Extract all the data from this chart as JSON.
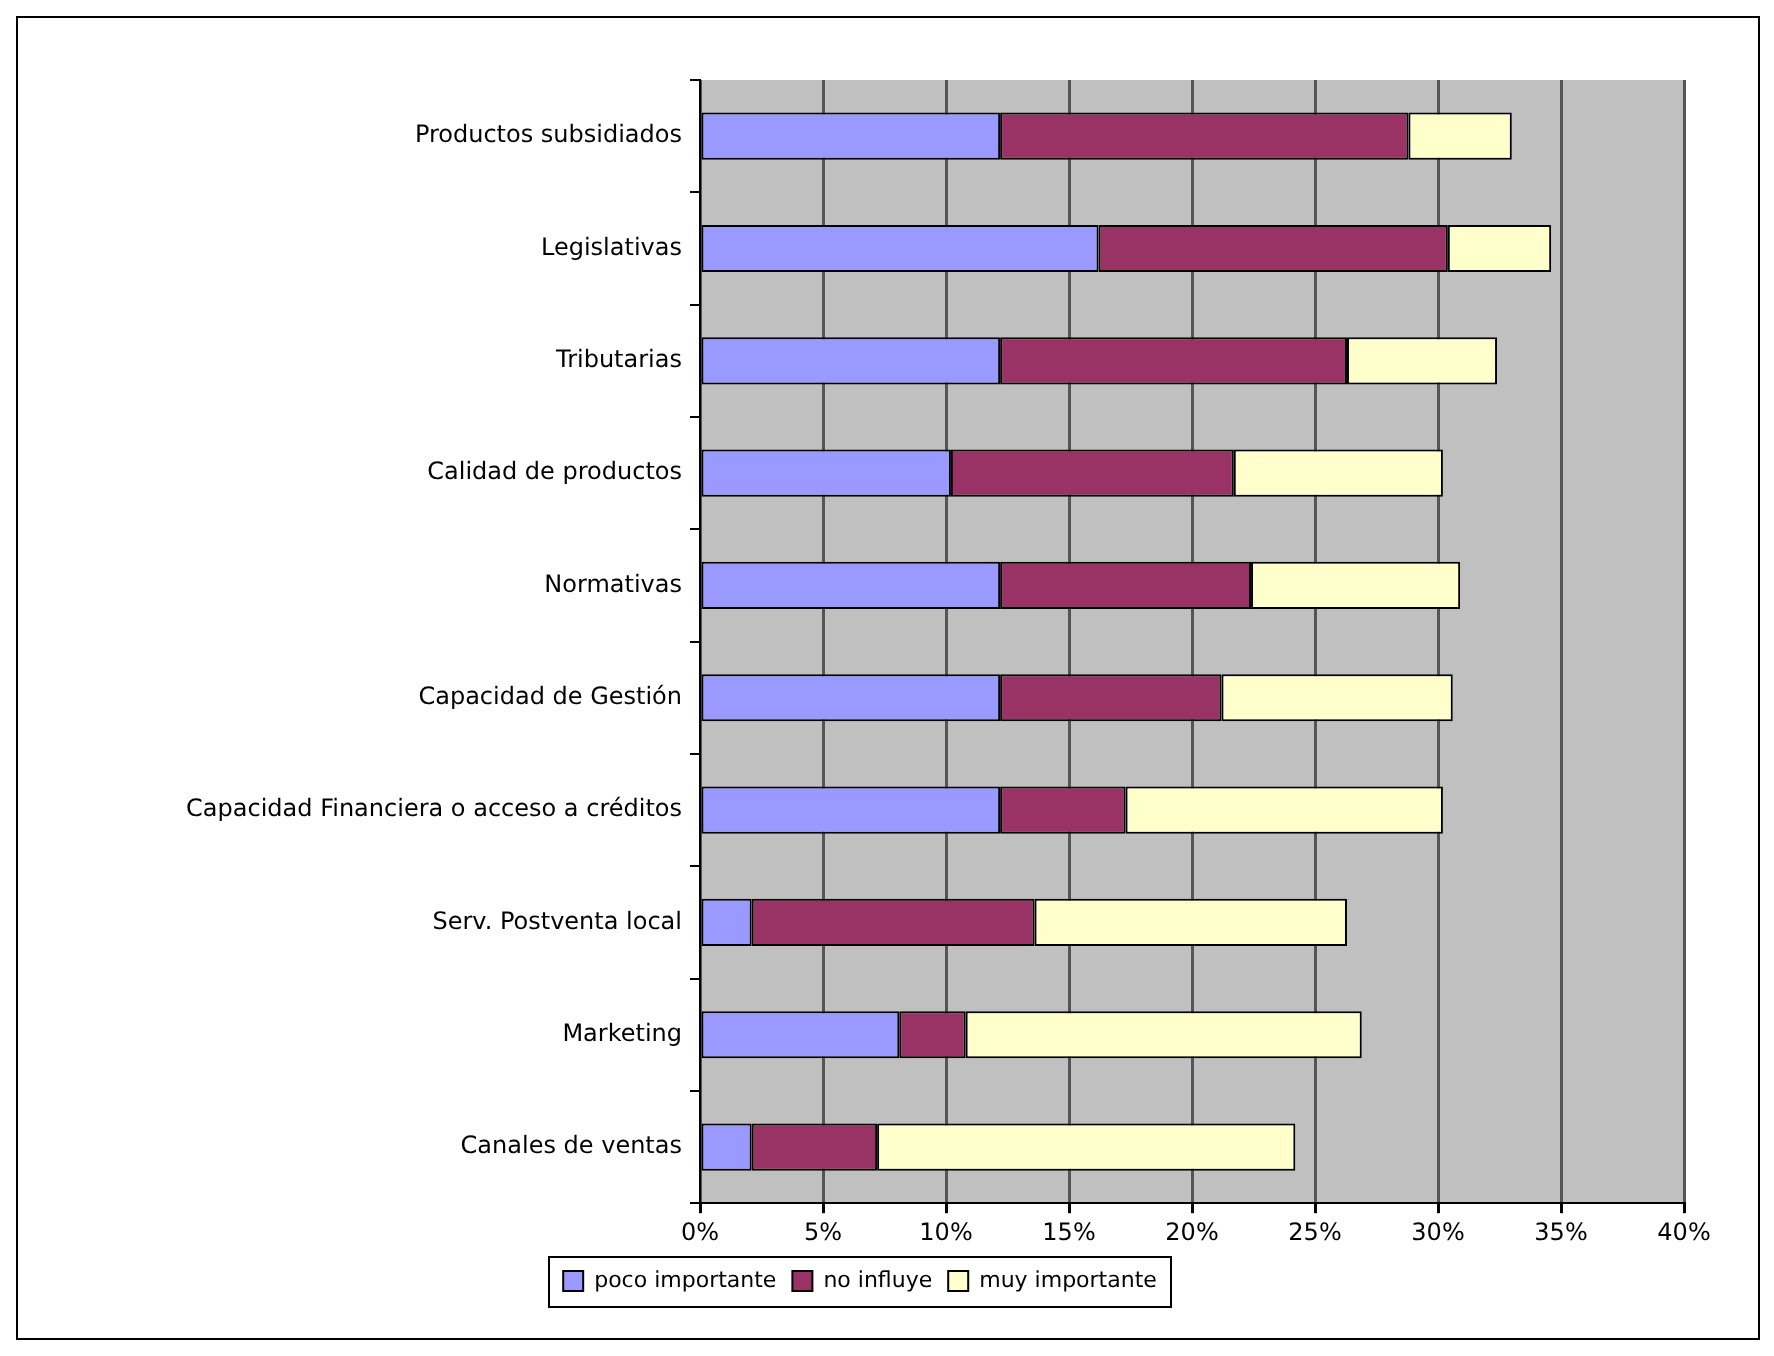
{
  "chart_data": {
    "type": "bar",
    "orientation": "horizontal",
    "stacked": true,
    "categories": [
      "Productos subsidiados",
      "Legislativas",
      "Tributarias",
      "Calidad de productos",
      "Normativas",
      "Capacidad de Gestión",
      "Capacidad Financiera o acceso a créditos",
      "Serv. Postventa local",
      "Marketing",
      "Canales de ventas"
    ],
    "series": [
      {
        "name": "poco importante",
        "color": "#9999ff",
        "values": [
          12.2,
          16.2,
          12.2,
          10.2,
          12.2,
          12.2,
          12.2,
          2.1,
          8.1,
          2.1
        ]
      },
      {
        "name": "no influye",
        "color": "#993366",
        "values": [
          16.6,
          14.2,
          14.1,
          11.5,
          10.2,
          9.0,
          5.1,
          11.5,
          2.7,
          5.1
        ]
      },
      {
        "name": "muy importante",
        "color": "#ffffcc",
        "values": [
          4.2,
          4.2,
          6.1,
          8.5,
          8.5,
          9.4,
          12.9,
          12.7,
          16.1,
          17.0
        ]
      }
    ],
    "xlim": [
      0,
      40
    ],
    "xticks": [
      {
        "value": 0,
        "label": "0%"
      },
      {
        "value": 5,
        "label": "5%"
      },
      {
        "value": 10,
        "label": "10%"
      },
      {
        "value": 15,
        "label": "15%"
      },
      {
        "value": 20,
        "label": "20%"
      },
      {
        "value": 25,
        "label": "25%"
      },
      {
        "value": 30,
        "label": "30%"
      },
      {
        "value": 35,
        "label": "35%"
      },
      {
        "value": 40,
        "label": "40%"
      }
    ],
    "grid": "x",
    "legend": "bottom"
  }
}
